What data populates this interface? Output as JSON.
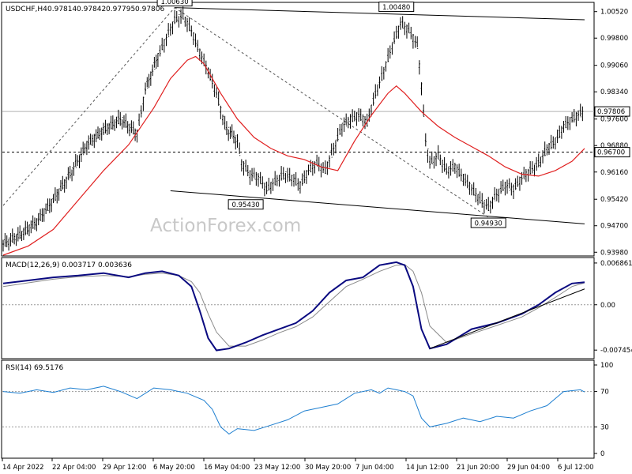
{
  "chart_data": {
    "type": "line",
    "symbol": "USDCHF,H4",
    "ohlc_readout": [
      "0.97814",
      "0.97842",
      "0.97795",
      "0.97806"
    ],
    "watermark": "ActionForex.com",
    "x_tick_labels": [
      "14 Apr 2022",
      "22 Apr 04:00",
      "29 Apr 12:00",
      "6 May 20:00",
      "16 May 04:00",
      "23 May 12:00",
      "30 May 20:00",
      "7 Jun 04:00",
      "14 Jun 12:00",
      "21 Jun 20:00",
      "29 Jun 04:00",
      "6 Jul 12:00"
    ],
    "price_panel": {
      "y_ticks": [
        "1.00520",
        "0.99800",
        "0.99060",
        "0.98340",
        "0.97600",
        "0.96880",
        "0.96160",
        "0.95420",
        "0.94700",
        "0.93980"
      ],
      "ylim": [
        0.939,
        1.0075
      ],
      "current_price": "0.97806",
      "level_label": "0.96700",
      "level": 0.967,
      "annotations": [
        {
          "text": "1.00630",
          "x": 41,
          "y": 1.0063
        },
        {
          "text": "0.95430",
          "x": 58,
          "y": 0.9543
        },
        {
          "text": "1.00480",
          "x": 94,
          "y": 1.0048
        },
        {
          "text": "0.94930",
          "x": 116,
          "y": 0.9493
        }
      ],
      "close_points": [
        [
          0,
          0.942
        ],
        [
          4,
          0.9445
        ],
        [
          8,
          0.948
        ],
        [
          12,
          0.954
        ],
        [
          16,
          0.961
        ],
        [
          20,
          0.969
        ],
        [
          24,
          0.973
        ],
        [
          28,
          0.976
        ],
        [
          32,
          0.972
        ],
        [
          34,
          0.984
        ],
        [
          37,
          0.993
        ],
        [
          39,
          0.998
        ],
        [
          41,
          1.003
        ],
        [
          43,
          1.004
        ],
        [
          45,
          1.0
        ],
        [
          47,
          0.994
        ],
        [
          49,
          0.989
        ],
        [
          51,
          0.983
        ],
        [
          53,
          0.974
        ],
        [
          56,
          0.97
        ],
        [
          57,
          0.964
        ],
        [
          59,
          0.961
        ],
        [
          61,
          0.96
        ],
        [
          63,
          0.957
        ],
        [
          65,
          0.959
        ],
        [
          67,
          0.961
        ],
        [
          69,
          0.96
        ],
        [
          71,
          0.958
        ],
        [
          73,
          0.962
        ],
        [
          75,
          0.964
        ],
        [
          77,
          0.962
        ],
        [
          79,
          0.968
        ],
        [
          81,
          0.974
        ],
        [
          83,
          0.976
        ],
        [
          85,
          0.977
        ],
        [
          87,
          0.975
        ],
        [
          89,
          0.983
        ],
        [
          91,
          0.989
        ],
        [
          93,
          0.996
        ],
        [
          95,
          1.002
        ],
        [
          97,
          1.0
        ],
        [
          99,
          0.996
        ],
        [
          100,
          0.985
        ],
        [
          101,
          0.97
        ],
        [
          102,
          0.964
        ],
        [
          104,
          0.966
        ],
        [
          106,
          0.962
        ],
        [
          108,
          0.963
        ],
        [
          110,
          0.96
        ],
        [
          112,
          0.957
        ],
        [
          114,
          0.954
        ],
        [
          116,
          0.952
        ],
        [
          118,
          0.9555
        ],
        [
          120,
          0.958
        ],
        [
          122,
          0.957
        ],
        [
          124,
          0.96
        ],
        [
          126,
          0.962
        ],
        [
          128,
          0.964
        ],
        [
          130,
          0.968
        ],
        [
          132,
          0.97
        ],
        [
          134,
          0.974
        ],
        [
          136,
          0.976
        ],
        [
          138,
          0.9775
        ],
        [
          139,
          0.97806
        ]
      ],
      "ma_points": [
        [
          0,
          0.939
        ],
        [
          6,
          0.9415
        ],
        [
          12,
          0.946
        ],
        [
          18,
          0.954
        ],
        [
          24,
          0.962
        ],
        [
          30,
          0.969
        ],
        [
          36,
          0.979
        ],
        [
          40,
          0.987
        ],
        [
          44,
          0.992
        ],
        [
          46,
          0.993
        ],
        [
          48,
          0.991
        ],
        [
          52,
          0.983
        ],
        [
          56,
          0.976
        ],
        [
          60,
          0.971
        ],
        [
          64,
          0.968
        ],
        [
          68,
          0.966
        ],
        [
          72,
          0.965
        ],
        [
          76,
          0.963
        ],
        [
          80,
          0.962
        ],
        [
          84,
          0.97
        ],
        [
          88,
          0.977
        ],
        [
          92,
          0.983
        ],
        [
          94,
          0.985
        ],
        [
          96,
          0.983
        ],
        [
          100,
          0.978
        ],
        [
          104,
          0.974
        ],
        [
          108,
          0.971
        ],
        [
          112,
          0.9685
        ],
        [
          116,
          0.966
        ],
        [
          120,
          0.963
        ],
        [
          124,
          0.961
        ],
        [
          128,
          0.9605
        ],
        [
          132,
          0.962
        ],
        [
          136,
          0.9645
        ],
        [
          139,
          0.968
        ]
      ],
      "trend_lines": [
        {
          "from": [
            0,
            0.9525
          ],
          "to": [
            41,
            1.0063
          ],
          "style": "dashed"
        },
        {
          "from": [
            41,
            1.0063
          ],
          "to": [
            116,
            0.9493
          ],
          "style": "dashed"
        },
        {
          "from": [
            41,
            1.0063
          ],
          "to": [
            139,
            1.003
          ],
          "style": "solid"
        },
        {
          "from": [
            40,
            0.9565
          ],
          "to": [
            139,
            0.9475
          ],
          "style": "solid"
        }
      ]
    },
    "macd_panel": {
      "label": "MACD(12,26,9) 0.003717 0.003636",
      "y_ticks": [
        "0.006861",
        "0.00",
        "-0.007454"
      ],
      "ylim": [
        -0.0086,
        0.0075
      ],
      "macd_points": [
        [
          0,
          0.0035
        ],
        [
          6,
          0.004
        ],
        [
          12,
          0.0045
        ],
        [
          18,
          0.0048
        ],
        [
          24,
          0.0052
        ],
        [
          30,
          0.0045
        ],
        [
          34,
          0.0052
        ],
        [
          38,
          0.0055
        ],
        [
          42,
          0.0048
        ],
        [
          45,
          0.003
        ],
        [
          47,
          -0.001
        ],
        [
          49,
          -0.0055
        ],
        [
          51,
          -0.0075
        ],
        [
          54,
          -0.0072
        ],
        [
          58,
          -0.0062
        ],
        [
          62,
          -0.005
        ],
        [
          66,
          -0.004
        ],
        [
          70,
          -0.003
        ],
        [
          74,
          -0.001
        ],
        [
          78,
          0.002
        ],
        [
          82,
          0.004
        ],
        [
          86,
          0.0045
        ],
        [
          90,
          0.0065
        ],
        [
          94,
          0.007
        ],
        [
          96,
          0.0065
        ],
        [
          98,
          0.003
        ],
        [
          100,
          -0.004
        ],
        [
          102,
          -0.0072
        ],
        [
          106,
          -0.0065
        ],
        [
          112,
          -0.004
        ],
        [
          118,
          -0.003
        ],
        [
          124,
          -0.0015
        ],
        [
          128,
          0.0
        ],
        [
          132,
          0.002
        ],
        [
          136,
          0.0035
        ],
        [
          139,
          0.0037
        ]
      ],
      "signal_points": [
        [
          0,
          0.003
        ],
        [
          6,
          0.0036
        ],
        [
          12,
          0.0042
        ],
        [
          18,
          0.0046
        ],
        [
          24,
          0.0048
        ],
        [
          30,
          0.0046
        ],
        [
          34,
          0.005
        ],
        [
          38,
          0.0052
        ],
        [
          42,
          0.0048
        ],
        [
          45,
          0.0038
        ],
        [
          47,
          0.002
        ],
        [
          49,
          -0.0015
        ],
        [
          51,
          -0.0045
        ],
        [
          54,
          -0.0068
        ],
        [
          58,
          -0.0068
        ],
        [
          62,
          -0.0058
        ],
        [
          66,
          -0.0046
        ],
        [
          70,
          -0.0036
        ],
        [
          74,
          -0.002
        ],
        [
          78,
          0.0005
        ],
        [
          82,
          0.003
        ],
        [
          86,
          0.0042
        ],
        [
          90,
          0.0055
        ],
        [
          94,
          0.0065
        ],
        [
          96,
          0.0066
        ],
        [
          98,
          0.0055
        ],
        [
          100,
          0.002
        ],
        [
          102,
          -0.0035
        ],
        [
          106,
          -0.0062
        ],
        [
          112,
          -0.0048
        ],
        [
          118,
          -0.0034
        ],
        [
          124,
          -0.002
        ],
        [
          128,
          -0.0005
        ],
        [
          132,
          0.0012
        ],
        [
          136,
          0.003
        ],
        [
          139,
          0.0036
        ]
      ],
      "trend_line": {
        "from": [
          102,
          -0.0072
        ],
        "to": [
          139,
          0.0026
        ]
      }
    },
    "rsi_panel": {
      "label": "RSI(14) 69.5176",
      "y_ticks": [
        "100",
        "70",
        "30",
        "0"
      ],
      "ylim": [
        0,
        100
      ],
      "levels": [
        70,
        30
      ],
      "rsi_points": [
        [
          0,
          70
        ],
        [
          4,
          68
        ],
        [
          8,
          72
        ],
        [
          12,
          69
        ],
        [
          16,
          74
        ],
        [
          20,
          72
        ],
        [
          24,
          76
        ],
        [
          28,
          70
        ],
        [
          32,
          62
        ],
        [
          36,
          74
        ],
        [
          40,
          72
        ],
        [
          44,
          68
        ],
        [
          48,
          60
        ],
        [
          50,
          50
        ],
        [
          52,
          30
        ],
        [
          54,
          22
        ],
        [
          56,
          28
        ],
        [
          60,
          26
        ],
        [
          64,
          32
        ],
        [
          68,
          38
        ],
        [
          72,
          48
        ],
        [
          76,
          52
        ],
        [
          80,
          56
        ],
        [
          84,
          68
        ],
        [
          88,
          72
        ],
        [
          90,
          68
        ],
        [
          92,
          74
        ],
        [
          94,
          72
        ],
        [
          96,
          70
        ],
        [
          98,
          65
        ],
        [
          100,
          40
        ],
        [
          102,
          30
        ],
        [
          106,
          34
        ],
        [
          110,
          40
        ],
        [
          114,
          36
        ],
        [
          118,
          42
        ],
        [
          122,
          40
        ],
        [
          126,
          48
        ],
        [
          130,
          54
        ],
        [
          134,
          70
        ],
        [
          138,
          72
        ],
        [
          139,
          69.5
        ]
      ]
    }
  }
}
